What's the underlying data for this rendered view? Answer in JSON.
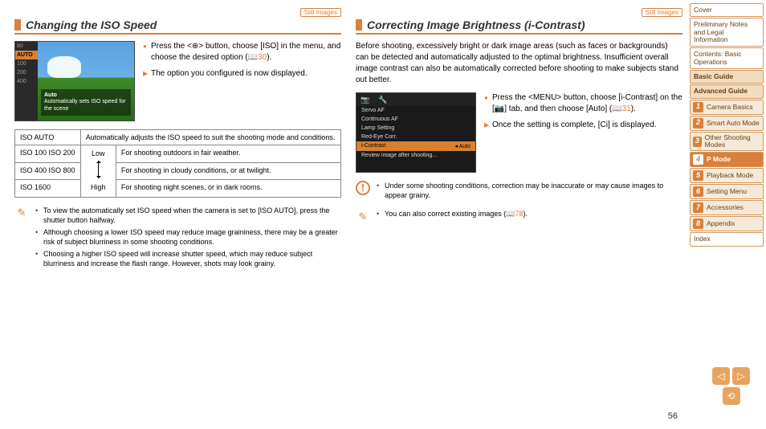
{
  "page_number": 56,
  "tags": {
    "still": "Still Images"
  },
  "left": {
    "title": "Changing the ISO Speed",
    "bullet1": "Press the <⊕> button, choose [ISO] in the menu, and choose the desired option (📖",
    "bullet1_ref": "30",
    "bullet1_tail": ").",
    "bullet2": "The option you configured is now displayed.",
    "screen": {
      "auto_label": "AUTO",
      "auto_text": "Auto",
      "desc": "Automatically sets ISO speed for the scene",
      "items": [
        "80",
        "AUTO",
        "100",
        "200",
        "400"
      ]
    },
    "table": {
      "r0": "Automatically adjusts the ISO speed to suit the shooting mode and conditions.",
      "r1": "For shooting outdoors in fair weather.",
      "r2": "For shooting in cloudy conditions, or at twilight.",
      "r3": "For shooting night scenes, or in dark rooms.",
      "low": "Low",
      "high": "High",
      "c0": "ISO AUTO",
      "c1": "ISO 100  ISO 200",
      "c2": "ISO 400  ISO 800",
      "c3": "ISO 1600"
    },
    "notes": {
      "n1a": "To view the automatically set ISO speed when the camera is set to [ISO AUTO], press the shutter button halfway.",
      "n2": "Although choosing a lower ISO speed may reduce image graininess, there may be a greater risk of subject blurriness in some shooting conditions.",
      "n3": "Choosing a higher ISO speed will increase shutter speed, which may reduce subject blurriness and increase the flash range. However, shots may look grainy."
    }
  },
  "right": {
    "title": "Correcting Image Brightness (i-Contrast)",
    "intro": "Before shooting, excessively bright or dark image areas (such as faces or backgrounds) can be detected and automatically adjusted to the optimal brightness. Insufficient overall image contrast can also be automatically corrected before shooting to make subjects stand out better.",
    "bullet1a": "Press the <MENU> button, choose [i-Contrast] on the [📷] tab, and then choose [Auto] (📖",
    "bullet1_ref": "31",
    "bullet1_tail": ").",
    "bullet2": "Once the setting is complete, [Ci] is displayed.",
    "menu": {
      "items": [
        "Servo AF",
        "Continuous AF",
        "Lamp Setting",
        "Red-Eye Corr.",
        "i-Contrast",
        "Review image after shooting..."
      ],
      "sel_idx": 4,
      "sel_val": "◂ Auto"
    },
    "warn": "Under some shooting conditions, correction may be inaccurate or may cause images to appear grainy.",
    "note": "You can also correct existing images (📖",
    "note_ref": "78",
    "note_tail": ")."
  },
  "nav": {
    "cover": "Cover",
    "prelim": "Preliminary Notes and Legal Information",
    "contents": "Contents: Basic Operations",
    "basic": "Basic Guide",
    "advanced": "Advanced Guide",
    "items": [
      {
        "n": "1",
        "l": "Camera Basics"
      },
      {
        "n": "2",
        "l": "Smart Auto Mode"
      },
      {
        "n": "3",
        "l": "Other Shooting Modes"
      },
      {
        "n": "4",
        "l": "P Mode"
      },
      {
        "n": "5",
        "l": "Playback Mode"
      },
      {
        "n": "6",
        "l": "Setting Menu"
      },
      {
        "n": "7",
        "l": "Accessories"
      },
      {
        "n": "8",
        "l": "Appendix"
      }
    ],
    "active_idx": 3,
    "index": "Index"
  },
  "colors": {
    "accent": "#d9803c",
    "nav_bg": "#f5ead9",
    "nav_border": "#d2975e"
  }
}
